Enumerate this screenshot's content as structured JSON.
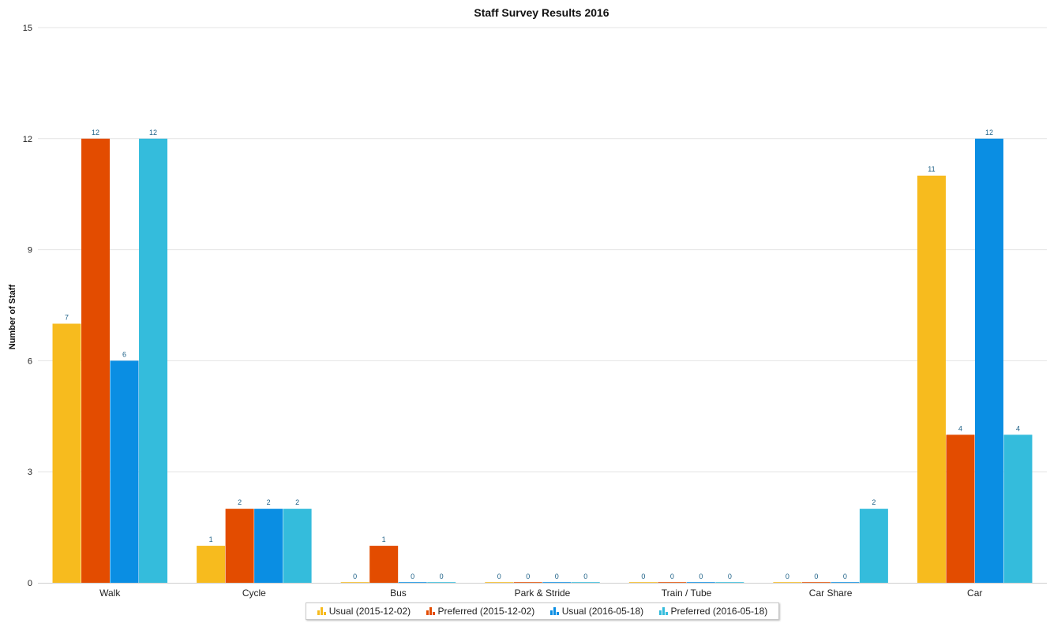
{
  "chart_data": {
    "type": "bar",
    "title": "Staff Survey Results 2016",
    "xlabel": "",
    "ylabel": "Number of Staff",
    "ylim": [
      0,
      15
    ],
    "yticks": [
      0,
      3,
      6,
      9,
      12,
      15
    ],
    "grid": true,
    "legend_position": "bottom",
    "categories": [
      "Walk",
      "Cycle",
      "Bus",
      "Park & Stride",
      "Train / Tube",
      "Car Share",
      "Car"
    ],
    "series": [
      {
        "name": "Usual (2015-12-02)",
        "color": "#f7bb1e",
        "values": [
          7,
          1,
          0,
          0,
          0,
          0,
          11
        ]
      },
      {
        "name": "Preferred (2015-12-02)",
        "color": "#e34c00",
        "values": [
          12,
          2,
          1,
          0,
          0,
          0,
          4
        ]
      },
      {
        "name": "Usual (2016-05-18)",
        "color": "#0a8ee3",
        "values": [
          6,
          2,
          0,
          0,
          0,
          0,
          12
        ]
      },
      {
        "name": "Preferred (2016-05-18)",
        "color": "#34bcdc",
        "values": [
          12,
          2,
          0,
          0,
          0,
          2,
          4
        ]
      }
    ]
  }
}
